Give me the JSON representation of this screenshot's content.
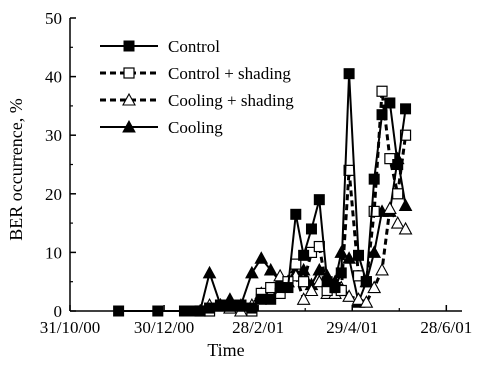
{
  "chart_data": {
    "type": "line",
    "title": "",
    "xlabel": "Time",
    "ylabel": "BER occurrence, %",
    "xlim": [
      "2000-10-31",
      "2001-07-08"
    ],
    "ylim": [
      0,
      50
    ],
    "xticks": [
      {
        "date": "2000-10-31",
        "label": "31/10/00"
      },
      {
        "date": "2000-12-30",
        "label": "30/12/00"
      },
      {
        "date": "2001-02-28",
        "label": "28/2/01"
      },
      {
        "date": "2001-04-29",
        "label": "29/4/01"
      },
      {
        "date": "2001-06-28",
        "label": "28/6/01"
      }
    ],
    "yticks": [
      0,
      10,
      20,
      30,
      40,
      50
    ],
    "grid": false,
    "legend_position": "top-left",
    "series": [
      {
        "name": "Control",
        "line_style": "solid",
        "marker": "filled-square",
        "color": "#000000",
        "points": [
          [
            "2000-12-01",
            0
          ],
          [
            "2000-12-26",
            0
          ],
          [
            "2001-01-12",
            0
          ],
          [
            "2001-01-16",
            0
          ],
          [
            "2001-01-22",
            0
          ],
          [
            "2001-01-28",
            0.5
          ],
          [
            "2001-02-04",
            1
          ],
          [
            "2001-02-10",
            1
          ],
          [
            "2001-02-17",
            1
          ],
          [
            "2001-02-24",
            0.5
          ],
          [
            "2001-03-02",
            2
          ],
          [
            "2001-03-08",
            2
          ],
          [
            "2001-03-14",
            4
          ],
          [
            "2001-03-19",
            4
          ],
          [
            "2001-03-24",
            16.5
          ],
          [
            "2001-03-29",
            9.5
          ],
          [
            "2001-04-03",
            14
          ],
          [
            "2001-04-08",
            19
          ],
          [
            "2001-04-13",
            5
          ],
          [
            "2001-04-18",
            4
          ],
          [
            "2001-04-22",
            6.5
          ],
          [
            "2001-04-27",
            40.5
          ],
          [
            "2001-05-03",
            9.5
          ],
          [
            "2001-05-08",
            5
          ],
          [
            "2001-05-13",
            22.5
          ],
          [
            "2001-05-18",
            33.5
          ],
          [
            "2001-05-23",
            35.5
          ],
          [
            "2001-05-28",
            25
          ],
          [
            "2001-06-02",
            34.5
          ]
        ]
      },
      {
        "name": "Control + shading",
        "line_style": "dashed",
        "marker": "open-square",
        "color": "#000000",
        "points": [
          [
            "2001-01-22",
            0
          ],
          [
            "2001-01-28",
            0
          ],
          [
            "2001-02-04",
            1
          ],
          [
            "2001-02-10",
            1
          ],
          [
            "2001-02-17",
            1
          ],
          [
            "2001-02-24",
            0
          ],
          [
            "2001-03-02",
            3
          ],
          [
            "2001-03-08",
            4
          ],
          [
            "2001-03-14",
            3
          ],
          [
            "2001-03-19",
            5
          ],
          [
            "2001-03-24",
            8
          ],
          [
            "2001-03-29",
            5
          ],
          [
            "2001-04-03",
            10
          ],
          [
            "2001-04-08",
            11
          ],
          [
            "2001-04-13",
            3.5
          ],
          [
            "2001-04-18",
            4
          ],
          [
            "2001-04-22",
            3.5
          ],
          [
            "2001-04-27",
            24
          ],
          [
            "2001-05-03",
            6
          ],
          [
            "2001-05-08",
            5
          ],
          [
            "2001-05-13",
            17
          ],
          [
            "2001-05-18",
            37.5
          ],
          [
            "2001-05-23",
            26
          ],
          [
            "2001-05-28",
            20
          ],
          [
            "2001-06-02",
            30
          ]
        ]
      },
      {
        "name": "Cooling + shading",
        "line_style": "dashed",
        "marker": "open-triangle",
        "color": "#000000",
        "points": [
          [
            "2001-01-22",
            0
          ],
          [
            "2001-01-28",
            1
          ],
          [
            "2001-02-04",
            1
          ],
          [
            "2001-02-10",
            0.5
          ],
          [
            "2001-02-17",
            0
          ],
          [
            "2001-02-24",
            1
          ],
          [
            "2001-03-02",
            3
          ],
          [
            "2001-03-08",
            3
          ],
          [
            "2001-03-14",
            6
          ],
          [
            "2001-03-19",
            5
          ],
          [
            "2001-03-24",
            6
          ],
          [
            "2001-03-29",
            2
          ],
          [
            "2001-04-03",
            3.5
          ],
          [
            "2001-04-08",
            5
          ],
          [
            "2001-04-13",
            3
          ],
          [
            "2001-04-18",
            3
          ],
          [
            "2001-04-22",
            4
          ],
          [
            "2001-04-27",
            2.5
          ],
          [
            "2001-05-03",
            2
          ],
          [
            "2001-05-08",
            1.5
          ],
          [
            "2001-05-13",
            4
          ],
          [
            "2001-05-18",
            7
          ],
          [
            "2001-05-23",
            17.5
          ],
          [
            "2001-05-28",
            15
          ],
          [
            "2001-06-02",
            14
          ]
        ]
      },
      {
        "name": "Cooling",
        "line_style": "solid",
        "marker": "filled-triangle",
        "color": "#000000",
        "points": [
          [
            "2001-01-22",
            0
          ],
          [
            "2001-01-28",
            6.5
          ],
          [
            "2001-02-04",
            1
          ],
          [
            "2001-02-10",
            2
          ],
          [
            "2001-02-17",
            1
          ],
          [
            "2001-02-24",
            6.5
          ],
          [
            "2001-03-02",
            9
          ],
          [
            "2001-03-08",
            7
          ],
          [
            "2001-03-14",
            5
          ],
          [
            "2001-03-19",
            5
          ],
          [
            "2001-03-24",
            6.5
          ],
          [
            "2001-03-29",
            7
          ],
          [
            "2001-04-03",
            4.5
          ],
          [
            "2001-04-08",
            7
          ],
          [
            "2001-04-13",
            6
          ],
          [
            "2001-04-18",
            5
          ],
          [
            "2001-04-22",
            10
          ],
          [
            "2001-04-27",
            9
          ],
          [
            "2001-05-03",
            1.5
          ],
          [
            "2001-05-08",
            5
          ],
          [
            "2001-05-13",
            10
          ],
          [
            "2001-05-18",
            17
          ],
          [
            "2001-05-23",
            17
          ],
          [
            "2001-05-28",
            26
          ],
          [
            "2001-06-02",
            18
          ]
        ]
      }
    ]
  }
}
